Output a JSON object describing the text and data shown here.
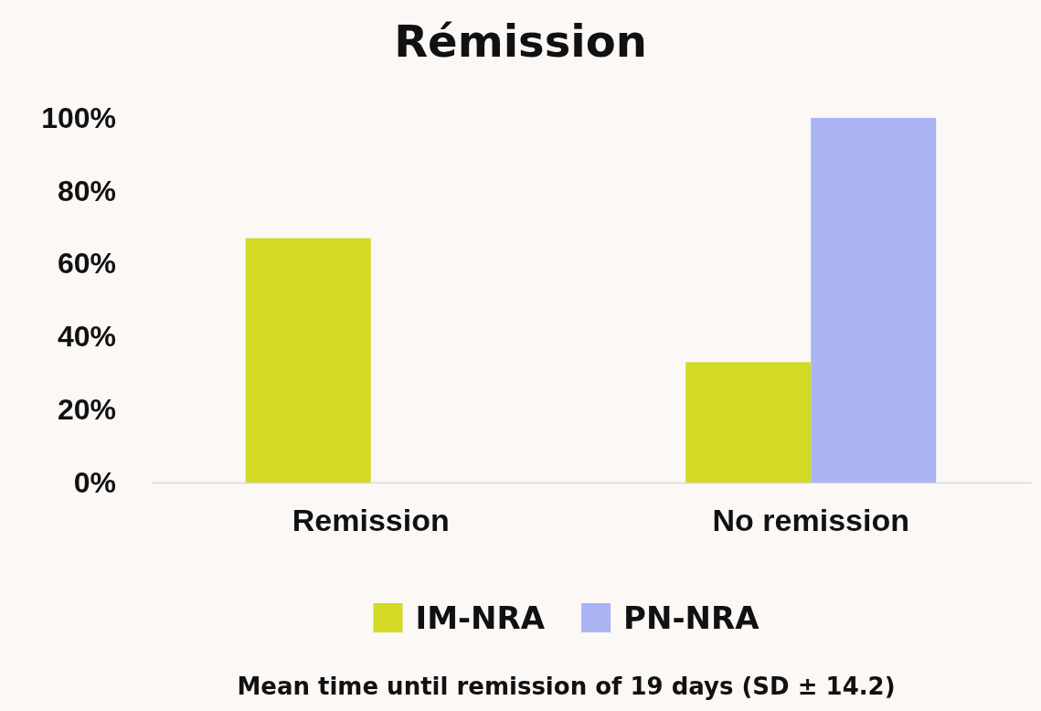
{
  "chart_data": {
    "type": "bar",
    "title": "Rémission",
    "categories": [
      "Remission",
      "No remission"
    ],
    "series": [
      {
        "name": "IM-NRA",
        "color": "#d2da26",
        "values": [
          67,
          33
        ]
      },
      {
        "name": "PN-NRA",
        "color": "#aab4f5",
        "values": [
          0,
          100
        ]
      }
    ],
    "ylim": [
      0,
      100
    ],
    "yticks": [
      {
        "value": 0,
        "label": "0%"
      },
      {
        "value": 20,
        "label": "20%"
      },
      {
        "value": 40,
        "label": "40%"
      },
      {
        "value": 60,
        "label": "60%"
      },
      {
        "value": 80,
        "label": "80%"
      },
      {
        "value": 100,
        "label": "100%"
      }
    ],
    "grid": false,
    "legend": "bottom",
    "annotations": [
      "Mean time until remission of 19 days (SD ± 14.2)"
    ]
  }
}
